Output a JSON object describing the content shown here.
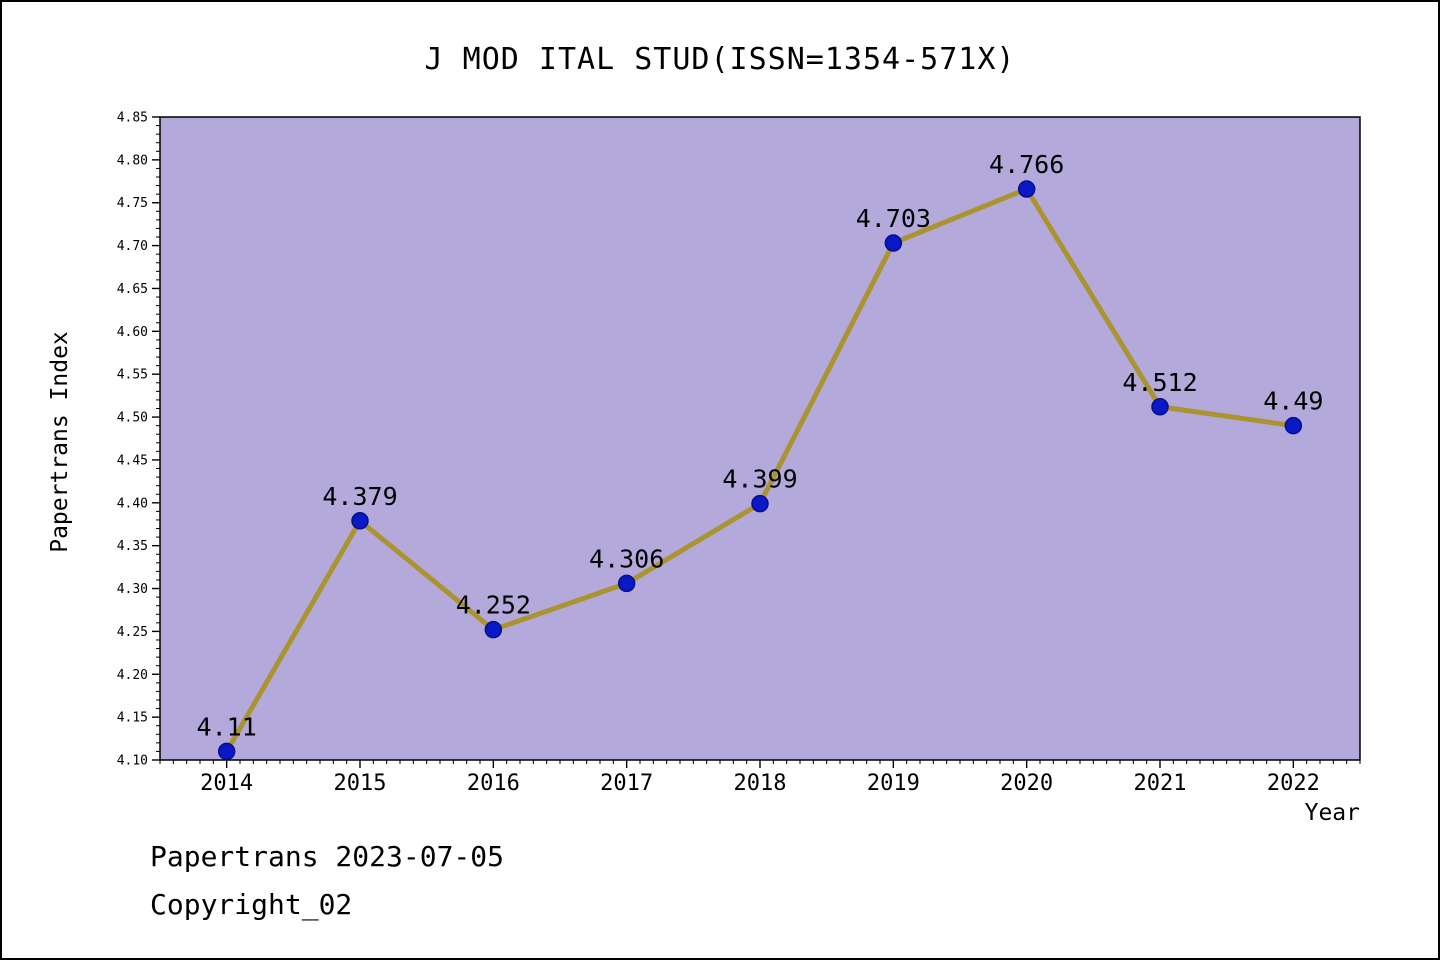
{
  "title": "J MOD ITAL STUD(ISSN=1354-571X)",
  "footer": {
    "line1": "Papertrans 2023-07-05",
    "line2": "Copyright_02"
  },
  "chart_data": {
    "type": "line",
    "title": "J MOD ITAL STUD(ISSN=1354-571X)",
    "xlabel": "Year",
    "ylabel": "Papertrans Index",
    "x": [
      2014,
      2015,
      2016,
      2017,
      2018,
      2019,
      2020,
      2021,
      2022
    ],
    "values": [
      4.11,
      4.379,
      4.252,
      4.306,
      4.399,
      4.703,
      4.766,
      4.512,
      4.49
    ],
    "point_labels": [
      "4.11",
      "4.379",
      "4.252",
      "4.306",
      "4.399",
      "4.703",
      "4.766",
      "4.512",
      "4.49"
    ],
    "ylim": [
      4.1,
      4.85
    ],
    "ytick_step": 0.05,
    "ytick_labels": [
      "4.10",
      "4.15",
      "4.20",
      "4.25",
      "4.30",
      "4.35",
      "4.40",
      "4.45",
      "4.50",
      "4.55",
      "4.60",
      "4.65",
      "4.70",
      "4.75",
      "4.80",
      "4.85"
    ],
    "xtick_labels": [
      "2014",
      "2015",
      "2016",
      "2017",
      "2018",
      "2019",
      "2020",
      "2021",
      "2022"
    ],
    "grid": false,
    "legend": null,
    "colors": {
      "plot_background": "#b3aadb",
      "line": "#ab9430",
      "marker_fill": "#0a18c8",
      "marker_edge": "#041086",
      "axis": "#000000",
      "text": "#000000"
    }
  }
}
